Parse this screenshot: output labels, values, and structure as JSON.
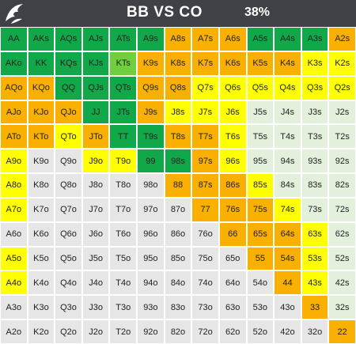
{
  "header": {
    "title": "BB VS CO",
    "percentage": "38%",
    "bg": "#3f4146"
  },
  "legend_colors": {
    "G": "#11a84a",
    "L": "#6fcf3c",
    "O": "#f9b000",
    "Y": "#ffff00",
    "P": "#e3f0dc",
    "W": "#e6e6e6"
  },
  "rows": [
    {
      "labels": [
        "AA",
        "AKs",
        "AQs",
        "AJs",
        "ATs",
        "A9s",
        "A8s",
        "A7s",
        "A6s",
        "A5s",
        "A4s",
        "A3s",
        "A2s"
      ],
      "colors": [
        "G",
        "G",
        "G",
        "G",
        "G",
        "G",
        "O",
        "O",
        "O",
        "G",
        "G",
        "G",
        "O"
      ]
    },
    {
      "labels": [
        "AKo",
        "KK",
        "KQs",
        "KJs",
        "KTs",
        "K9s",
        "K8s",
        "K7s",
        "K6s",
        "K5s",
        "K4s",
        "K3s",
        "K2s"
      ],
      "colors": [
        "G",
        "G",
        "G",
        "G",
        "L",
        "O",
        "O",
        "O",
        "O",
        "O",
        "O",
        "Y",
        "Y"
      ]
    },
    {
      "labels": [
        "AQo",
        "KQo",
        "QQ",
        "QJs",
        "QTs",
        "Q9s",
        "Q8s",
        "Q7s",
        "Q6s",
        "Q5s",
        "Q4s",
        "Q3s",
        "Q2s"
      ],
      "colors": [
        "O",
        "O",
        "G",
        "G",
        "G",
        "O",
        "O",
        "Y",
        "Y",
        "Y",
        "Y",
        "Y",
        "Y"
      ]
    },
    {
      "labels": [
        "AJo",
        "KJo",
        "QJo",
        "JJ",
        "JTs",
        "J9s",
        "J8s",
        "J7s",
        "J6s",
        "J5s",
        "J4s",
        "J3s",
        "J2s"
      ],
      "colors": [
        "O",
        "O",
        "O",
        "G",
        "G",
        "O",
        "Y",
        "Y",
        "Y",
        "P",
        "P",
        "P",
        "P"
      ]
    },
    {
      "labels": [
        "ATo",
        "KTo",
        "QTo",
        "JTo",
        "TT",
        "T9s",
        "T8s",
        "T7s",
        "T6s",
        "T5s",
        "T4s",
        "T3s",
        "T2s"
      ],
      "colors": [
        "O",
        "O",
        "Y",
        "O",
        "G",
        "G",
        "O",
        "O",
        "Y",
        "P",
        "P",
        "P",
        "P"
      ]
    },
    {
      "labels": [
        "A9o",
        "K9o",
        "Q9o",
        "J9o",
        "T9o",
        "99",
        "98s",
        "97s",
        "96s",
        "95s",
        "94s",
        "93s",
        "92s"
      ],
      "colors": [
        "Y",
        "W",
        "W",
        "Y",
        "Y",
        "G",
        "G",
        "O",
        "Y",
        "P",
        "P",
        "P",
        "P"
      ]
    },
    {
      "labels": [
        "A8o",
        "K8o",
        "Q8o",
        "J8o",
        "T8o",
        "98o",
        "88",
        "87s",
        "86s",
        "85s",
        "84s",
        "83s",
        "82s"
      ],
      "colors": [
        "Y",
        "W",
        "W",
        "W",
        "W",
        "W",
        "O",
        "O",
        "O",
        "Y",
        "P",
        "P",
        "P"
      ]
    },
    {
      "labels": [
        "A7o",
        "K7o",
        "Q7o",
        "J7o",
        "T7o",
        "97o",
        "87o",
        "77",
        "76s",
        "75s",
        "74s",
        "73s",
        "72s"
      ],
      "colors": [
        "Y",
        "W",
        "W",
        "W",
        "W",
        "W",
        "W",
        "O",
        "O",
        "O",
        "Y",
        "P",
        "P"
      ]
    },
    {
      "labels": [
        "A6o",
        "K6o",
        "Q6o",
        "J6o",
        "T6o",
        "96o",
        "86o",
        "76o",
        "66",
        "65s",
        "64s",
        "63s",
        "62s"
      ],
      "colors": [
        "W",
        "W",
        "W",
        "W",
        "W",
        "W",
        "W",
        "W",
        "O",
        "O",
        "O",
        "Y",
        "P"
      ]
    },
    {
      "labels": [
        "A5o",
        "K5o",
        "Q5o",
        "J5o",
        "T5o",
        "95o",
        "85o",
        "75o",
        "65o",
        "55",
        "54s",
        "53s",
        "52s"
      ],
      "colors": [
        "Y",
        "W",
        "W",
        "W",
        "W",
        "W",
        "W",
        "W",
        "W",
        "O",
        "O",
        "Y",
        "P"
      ]
    },
    {
      "labels": [
        "A4o",
        "K4o",
        "Q4o",
        "J4o",
        "T4o",
        "94o",
        "84o",
        "74o",
        "64o",
        "54o",
        "44",
        "43s",
        "42s"
      ],
      "colors": [
        "Y",
        "W",
        "W",
        "W",
        "W",
        "W",
        "W",
        "W",
        "W",
        "W",
        "O",
        "Y",
        "P"
      ]
    },
    {
      "labels": [
        "A3o",
        "K3o",
        "Q3o",
        "J3o",
        "T3o",
        "93o",
        "83o",
        "73o",
        "63o",
        "53o",
        "43o",
        "33",
        "32s"
      ],
      "colors": [
        "W",
        "W",
        "W",
        "W",
        "W",
        "W",
        "W",
        "W",
        "W",
        "W",
        "W",
        "O",
        "P"
      ]
    },
    {
      "labels": [
        "A2o",
        "K2o",
        "Q2o",
        "J2o",
        "T2o",
        "92o",
        "82o",
        "72o",
        "62o",
        "52o",
        "42o",
        "32o",
        "22"
      ],
      "colors": [
        "W",
        "W",
        "W",
        "W",
        "W",
        "W",
        "W",
        "W",
        "W",
        "W",
        "W",
        "W",
        "O"
      ]
    }
  ]
}
